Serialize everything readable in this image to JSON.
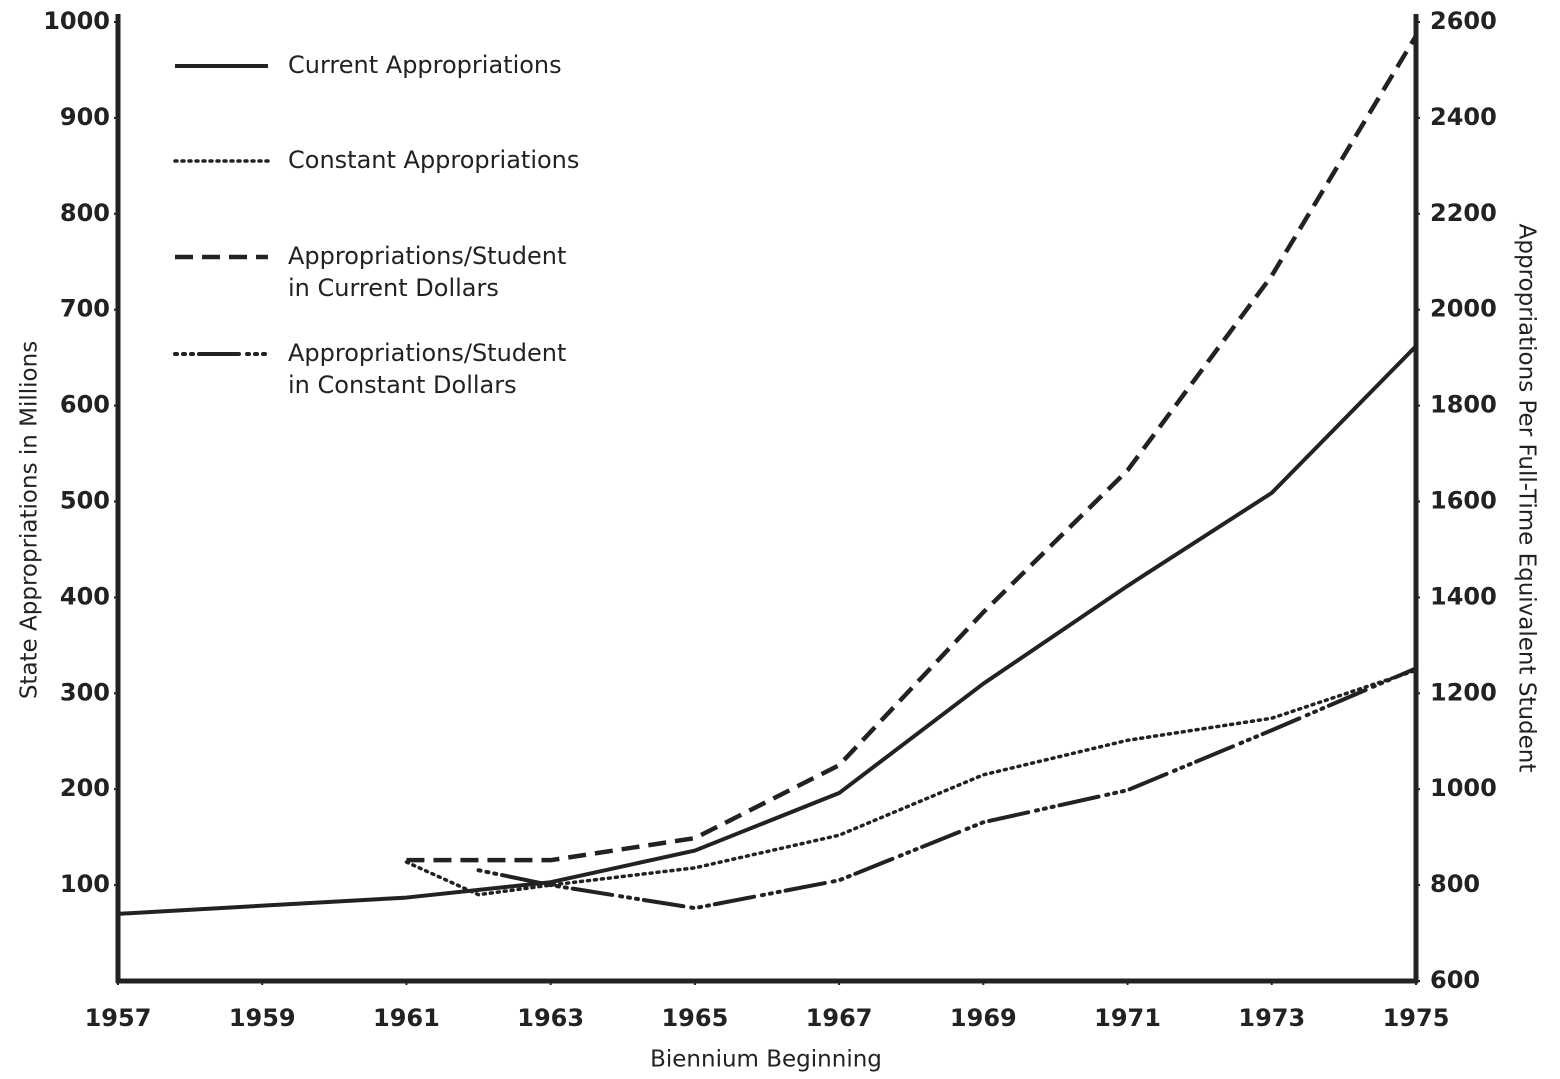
{
  "chart_data": {
    "type": "line",
    "xlabel": "Biennium Beginning",
    "ylabel": "State Appropriations in Millions",
    "y2label": "Appropriations Per Full-Time Equivalent Student",
    "xlim": [
      1957,
      1975
    ],
    "xticks": [
      1957,
      1959,
      1961,
      1963,
      1965,
      1967,
      1969,
      1971,
      1973,
      1975
    ],
    "ylim": [
      0,
      1000
    ],
    "yticks": [
      100,
      200,
      300,
      400,
      500,
      600,
      700,
      800,
      900,
      1000
    ],
    "y2lim": [
      600,
      2600
    ],
    "y2ticks": [
      600,
      800,
      1000,
      1200,
      1400,
      1600,
      1800,
      2000,
      2200,
      2400,
      2600
    ],
    "legend": "upper left",
    "series": [
      {
        "name": [
          "Current Appropriations"
        ],
        "color": "#222222",
        "style": "solid",
        "axis": "y",
        "x": [
          1957,
          1961,
          1963,
          1965,
          1967,
          1969,
          1971,
          1973,
          1975
        ],
        "values": [
          70,
          87,
          103,
          136,
          196,
          310,
          412,
          509,
          662
        ]
      },
      {
        "name": [
          "Constant Appropriations"
        ],
        "color": "#222222",
        "style": "dotted",
        "axis": "y",
        "x": [
          1961,
          1962,
          1963,
          1965,
          1967,
          1969,
          1971,
          1973,
          1975
        ],
        "values": [
          124,
          90,
          100,
          118,
          152,
          215,
          251,
          274,
          324
        ]
      },
      {
        "name": [
          "Appropriations/Student",
          "in Current Dollars"
        ],
        "color": "#222222",
        "style": "dashed",
        "axis": "y2",
        "x": [
          1961,
          1963,
          1965,
          1967,
          1969,
          1971,
          1973,
          1975
        ],
        "values": [
          852,
          852,
          898,
          1050,
          1369,
          1665,
          2071,
          2571
        ]
      },
      {
        "name": [
          "Appropriations/Student",
          "in Constant Dollars"
        ],
        "color": "#222222",
        "style": "dash-dot",
        "axis": "y2",
        "x": [
          1962,
          1963,
          1965,
          1967,
          1969,
          1971,
          1973,
          1975
        ],
        "values": [
          831,
          800,
          752,
          810,
          931,
          998,
          1123,
          1252
        ]
      }
    ]
  }
}
